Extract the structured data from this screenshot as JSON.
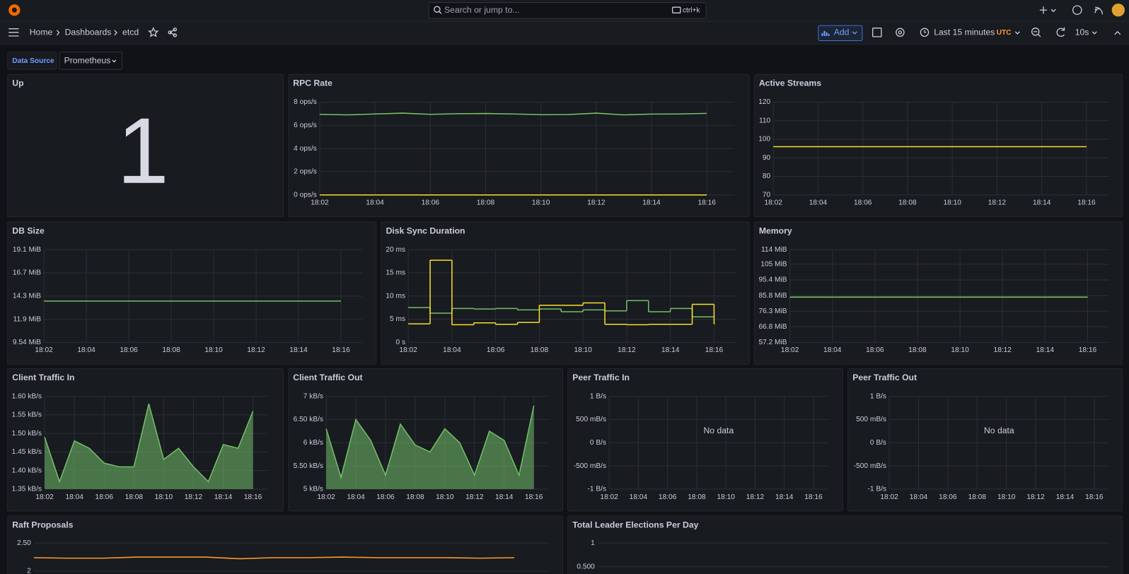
{
  "topbar": {
    "search_placeholder": "Search or jump to...",
    "shortcut": "ctrl+k"
  },
  "nav": {
    "breadcrumbs": [
      "Home",
      "Dashboards",
      "etcd"
    ],
    "add": "Add",
    "time_range": "Last 15 minutes",
    "timezone": "UTC",
    "refresh": "10s"
  },
  "variables": {
    "label": "Data Source",
    "value": "Prometheus"
  },
  "panels": [
    {
      "title": "Up",
      "type": "stat",
      "value": 1
    },
    {
      "title": "RPC Rate",
      "type": "line",
      "grid": true,
      "xlim": [
        1082,
        1097
      ],
      "xticks": [
        {
          "value": 1082,
          "label": "18:02"
        },
        {
          "value": 1084,
          "label": "18:04"
        },
        {
          "value": 1086,
          "label": "18:06"
        },
        {
          "value": 1088,
          "label": "18:08"
        },
        {
          "value": 1090,
          "label": "18:10"
        },
        {
          "value": 1092,
          "label": "18:12"
        },
        {
          "value": 1094,
          "label": "18:14"
        },
        {
          "value": 1096,
          "label": "18:16"
        }
      ],
      "ylim": [
        0,
        8
      ],
      "yticks": [
        {
          "value": 0,
          "label": "0 ops/s"
        },
        {
          "value": 2,
          "label": "2 ops/s"
        },
        {
          "value": 4,
          "label": "4 ops/s"
        },
        {
          "value": 6,
          "label": "6 ops/s"
        },
        {
          "value": 8,
          "label": "8 ops/s"
        }
      ],
      "x": [
        1082,
        1083,
        1084,
        1085,
        1086,
        1087,
        1088,
        1089,
        1090,
        1091,
        1092,
        1093,
        1094,
        1095,
        1096
      ],
      "series": [
        {
          "color": "#73bf69",
          "values": [
            6.95,
            6.9,
            6.98,
            7.05,
            6.95,
            7.0,
            7.02,
            6.98,
            6.92,
            6.93,
            7.05,
            6.9,
            6.97,
            6.98,
            7.03
          ]
        },
        {
          "color": "#fade2a",
          "values": [
            0,
            0,
            0,
            0,
            0,
            0,
            0,
            0,
            0,
            0,
            0,
            0,
            0,
            0,
            0
          ]
        }
      ]
    },
    {
      "title": "Active Streams",
      "type": "line",
      "grid": true,
      "xlim": [
        1082,
        1097
      ],
      "xticks": [
        {
          "value": 1082,
          "label": "18:02"
        },
        {
          "value": 1084,
          "label": "18:04"
        },
        {
          "value": 1086,
          "label": "18:06"
        },
        {
          "value": 1088,
          "label": "18:08"
        },
        {
          "value": 1090,
          "label": "18:10"
        },
        {
          "value": 1092,
          "label": "18:12"
        },
        {
          "value": 1094,
          "label": "18:14"
        },
        {
          "value": 1096,
          "label": "18:16"
        }
      ],
      "ylim": [
        70,
        120
      ],
      "yticks": [
        70,
        80,
        90,
        100,
        110,
        120
      ],
      "x": [
        1082,
        1096
      ],
      "series": [
        {
          "color": "#fade2a",
          "values": [
            96,
            96
          ]
        }
      ]
    },
    {
      "title": "DB Size",
      "type": "line",
      "grid": true,
      "xlim": [
        1082,
        1097
      ],
      "xticks": [
        {
          "value": 1082,
          "label": "18:02"
        },
        {
          "value": 1084,
          "label": "18:04"
        },
        {
          "value": 1086,
          "label": "18:06"
        },
        {
          "value": 1088,
          "label": "18:08"
        },
        {
          "value": 1090,
          "label": "18:10"
        },
        {
          "value": 1092,
          "label": "18:12"
        },
        {
          "value": 1094,
          "label": "18:14"
        },
        {
          "value": 1096,
          "label": "18:16"
        }
      ],
      "ylim": [
        9.54,
        19.1
      ],
      "yticks": [
        {
          "value": 9.54,
          "label": "9.54 MiB"
        },
        {
          "value": 11.9,
          "label": "11.9 MiB"
        },
        {
          "value": 14.3,
          "label": "14.3 MiB"
        },
        {
          "value": 16.7,
          "label": "16.7 MiB"
        },
        {
          "value": 19.1,
          "label": "19.1 MiB"
        }
      ],
      "x": [
        1082,
        1096
      ],
      "series": [
        {
          "color": "#73bf69",
          "values": [
            13.8,
            13.8
          ]
        }
      ]
    },
    {
      "title": "Disk Sync Duration",
      "type": "step",
      "grid": true,
      "xlim": [
        1082,
        1097
      ],
      "xticks": [
        {
          "value": 1082,
          "label": "18:02"
        },
        {
          "value": 1084,
          "label": "18:04"
        },
        {
          "value": 1086,
          "label": "18:06"
        },
        {
          "value": 1088,
          "label": "18:08"
        },
        {
          "value": 1090,
          "label": "18:10"
        },
        {
          "value": 1092,
          "label": "18:12"
        },
        {
          "value": 1094,
          "label": "18:14"
        },
        {
          "value": 1096,
          "label": "18:16"
        }
      ],
      "ylim": [
        0,
        20
      ],
      "yticks": [
        {
          "value": 0,
          "label": "0 s"
        },
        {
          "value": 5,
          "label": "5 ms"
        },
        {
          "value": 10,
          "label": "10 ms"
        },
        {
          "value": 15,
          "label": "15 ms"
        },
        {
          "value": 20,
          "label": "20 ms"
        }
      ],
      "x": [
        1082,
        1083,
        1084,
        1085,
        1086,
        1087,
        1088,
        1089,
        1090,
        1091,
        1092,
        1093,
        1094,
        1095,
        1096
      ],
      "series": [
        {
          "color": "#73bf69",
          "values": [
            7.5,
            6.3,
            7.3,
            7.2,
            7.3,
            7.0,
            7.2,
            6.6,
            7.0,
            6.8,
            9.0,
            6.6,
            7.3,
            5.5,
            5.6
          ]
        },
        {
          "color": "#fade2a",
          "values": [
            4.0,
            17.7,
            3.8,
            4.2,
            3.9,
            4.3,
            8.0,
            8.0,
            8.5,
            3.9,
            3.8,
            3.9,
            3.9,
            8.2,
            4.0
          ]
        }
      ]
    },
    {
      "title": "Memory",
      "type": "line",
      "grid": true,
      "xlim": [
        1082,
        1097
      ],
      "xticks": [
        {
          "value": 1082,
          "label": "18:02"
        },
        {
          "value": 1084,
          "label": "18:04"
        },
        {
          "value": 1086,
          "label": "18:06"
        },
        {
          "value": 1088,
          "label": "18:08"
        },
        {
          "value": 1090,
          "label": "18:10"
        },
        {
          "value": 1092,
          "label": "18:12"
        },
        {
          "value": 1094,
          "label": "18:14"
        },
        {
          "value": 1096,
          "label": "18:16"
        }
      ],
      "ylim": [
        57.2,
        114
      ],
      "yticks": [
        {
          "value": 57.2,
          "label": "57.2 MiB"
        },
        {
          "value": 66.8,
          "label": "66.8 MiB"
        },
        {
          "value": 76.3,
          "label": "76.3 MiB"
        },
        {
          "value": 85.8,
          "label": "85.8 MiB"
        },
        {
          "value": 95.4,
          "label": "95.4 MiB"
        },
        {
          "value": 105,
          "label": "105 MiB"
        },
        {
          "value": 114,
          "label": "114 MiB"
        }
      ],
      "x": [
        1082,
        1096
      ],
      "series": [
        {
          "color": "#73bf69",
          "values": [
            84.9,
            84.9
          ]
        }
      ]
    },
    {
      "title": "Client Traffic In",
      "type": "area",
      "grid": true,
      "xlim": [
        1082,
        1097
      ],
      "xticks": [
        {
          "value": 1082,
          "label": "18:02"
        },
        {
          "value": 1084,
          "label": "18:04"
        },
        {
          "value": 1086,
          "label": "18:06"
        },
        {
          "value": 1088,
          "label": "18:08"
        },
        {
          "value": 1090,
          "label": "18:10"
        },
        {
          "value": 1092,
          "label": "18:12"
        },
        {
          "value": 1094,
          "label": "18:14"
        },
        {
          "value": 1096,
          "label": "18:16"
        }
      ],
      "ylim": [
        1.35,
        1.6
      ],
      "yticks": [
        {
          "value": 1.35,
          "label": "1.35 kB/s"
        },
        {
          "value": 1.4,
          "label": "1.40 kB/s"
        },
        {
          "value": 1.45,
          "label": "1.45 kB/s"
        },
        {
          "value": 1.5,
          "label": "1.50 kB/s"
        },
        {
          "value": 1.55,
          "label": "1.55 kB/s"
        },
        {
          "value": 1.6,
          "label": "1.60 kB/s"
        }
      ],
      "x": [
        1082,
        1083,
        1084,
        1085,
        1086,
        1087,
        1088,
        1089,
        1090,
        1091,
        1092,
        1093,
        1094,
        1095,
        1096
      ],
      "series": [
        {
          "color": "#73bf69",
          "values": [
            1.49,
            1.37,
            1.48,
            1.46,
            1.42,
            1.41,
            1.41,
            1.58,
            1.43,
            1.46,
            1.41,
            1.37,
            1.47,
            1.46,
            1.56
          ]
        }
      ]
    },
    {
      "title": "Client Traffic Out",
      "type": "area",
      "grid": true,
      "xlim": [
        1082,
        1097
      ],
      "xticks": [
        {
          "value": 1082,
          "label": "18:02"
        },
        {
          "value": 1084,
          "label": "18:04"
        },
        {
          "value": 1086,
          "label": "18:06"
        },
        {
          "value": 1088,
          "label": "18:08"
        },
        {
          "value": 1090,
          "label": "18:10"
        },
        {
          "value": 1092,
          "label": "18:12"
        },
        {
          "value": 1094,
          "label": "18:14"
        },
        {
          "value": 1096,
          "label": "18:16"
        }
      ],
      "ylim": [
        5,
        7
      ],
      "yticks": [
        {
          "value": 5,
          "label": "5 kB/s"
        },
        {
          "value": 5.5,
          "label": "5.50 kB/s"
        },
        {
          "value": 6,
          "label": "6 kB/s"
        },
        {
          "value": 6.5,
          "label": "6.50 kB/s"
        },
        {
          "value": 7,
          "label": "7 kB/s"
        }
      ],
      "x": [
        1082,
        1083,
        1084,
        1085,
        1086,
        1087,
        1088,
        1089,
        1090,
        1091,
        1092,
        1093,
        1094,
        1095,
        1096
      ],
      "series": [
        {
          "color": "#73bf69",
          "values": [
            6.3,
            5.25,
            6.5,
            6.05,
            5.3,
            6.4,
            5.95,
            5.8,
            6.3,
            6.0,
            5.3,
            6.25,
            6.05,
            5.3,
            6.8
          ]
        }
      ]
    },
    {
      "title": "Peer Traffic In",
      "type": "line",
      "grid": true,
      "message": "No data",
      "xlim": [
        1082,
        1097
      ],
      "xticks": [
        {
          "value": 1082,
          "label": "18:02"
        },
        {
          "value": 1084,
          "label": "18:04"
        },
        {
          "value": 1086,
          "label": "18:06"
        },
        {
          "value": 1088,
          "label": "18:08"
        },
        {
          "value": 1090,
          "label": "18:10"
        },
        {
          "value": 1092,
          "label": "18:12"
        },
        {
          "value": 1094,
          "label": "18:14"
        },
        {
          "value": 1096,
          "label": "18:16"
        }
      ],
      "ylim": [
        -1,
        1
      ],
      "yticks": [
        {
          "value": -1,
          "label": "-1 B/s"
        },
        {
          "value": -0.5,
          "label": "-500 mB/s"
        },
        {
          "value": 0,
          "label": "0 B/s"
        },
        {
          "value": 0.5,
          "label": "500 mB/s"
        },
        {
          "value": 1,
          "label": "1 B/s"
        }
      ]
    },
    {
      "title": "Peer Traffic Out",
      "type": "line",
      "grid": true,
      "message": "No data",
      "xlim": [
        1082,
        1097
      ],
      "xticks": [
        {
          "value": 1082,
          "label": "18:02"
        },
        {
          "value": 1084,
          "label": "18:04"
        },
        {
          "value": 1086,
          "label": "18:06"
        },
        {
          "value": 1088,
          "label": "18:08"
        },
        {
          "value": 1090,
          "label": "18:10"
        },
        {
          "value": 1092,
          "label": "18:12"
        },
        {
          "value": 1094,
          "label": "18:14"
        },
        {
          "value": 1096,
          "label": "18:16"
        }
      ],
      "ylim": [
        -1,
        1
      ],
      "yticks": [
        {
          "value": -1,
          "label": "-1 B/s"
        },
        {
          "value": -0.5,
          "label": "-500 mB/s"
        },
        {
          "value": 0,
          "label": "0 B/s"
        },
        {
          "value": 0.5,
          "label": "500 mB/s"
        },
        {
          "value": 1,
          "label": "1 B/s"
        }
      ]
    },
    {
      "title": "Raft Proposals",
      "type": "line",
      "grid": true,
      "xlim": [
        1082,
        1097
      ],
      "ylim": [
        1.5,
        2.5
      ],
      "yticks": [
        2,
        {
          "value": 2.5,
          "label": "2.50"
        }
      ],
      "x": [
        1082,
        1083,
        1084,
        1085,
        1086,
        1087,
        1088,
        1089,
        1090,
        1091,
        1092,
        1093,
        1094,
        1095,
        1096
      ],
      "series": [
        {
          "color": "#ff9830",
          "values": [
            2.24,
            2.23,
            2.23,
            2.25,
            2.25,
            2.25,
            2.22,
            2.24,
            2.24,
            2.25,
            2.24,
            2.24,
            2.24,
            2.23,
            2.24
          ]
        }
      ]
    },
    {
      "title": "Total Leader Elections Per Day",
      "type": "line",
      "grid": true,
      "ylim": [
        0,
        1
      ],
      "yticks": [
        {
          "value": 0.5,
          "label": "0.500"
        },
        1
      ]
    }
  ]
}
